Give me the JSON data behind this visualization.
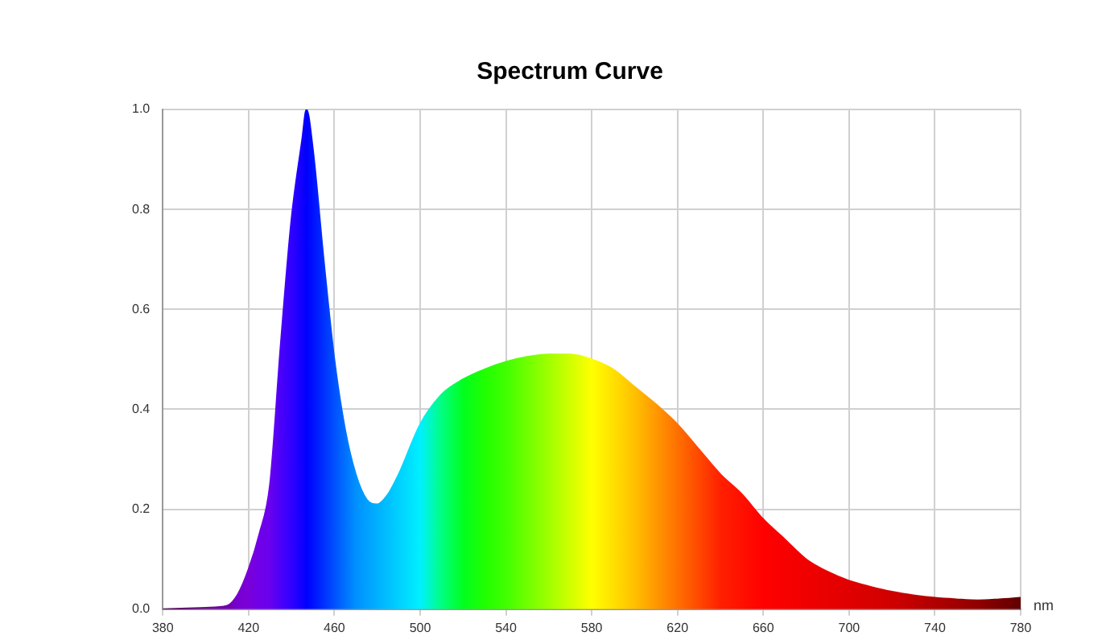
{
  "chart_data": {
    "type": "area",
    "title": "Spectrum Curve",
    "xlabel": "nm",
    "x": [
      380,
      400,
      410,
      415,
      420,
      425,
      430,
      435,
      440,
      445,
      447,
      450,
      455,
      460,
      465,
      470,
      475,
      480,
      485,
      490,
      500,
      510,
      520,
      530,
      540,
      550,
      560,
      570,
      580,
      590,
      600,
      610,
      620,
      630,
      640,
      650,
      660,
      670,
      680,
      690,
      700,
      710,
      720,
      730,
      740,
      750,
      760,
      770,
      780
    ],
    "series": [
      {
        "values": [
          0,
          0.003,
          0.007,
          0.03,
          0.08,
          0.15,
          0.25,
          0.53,
          0.78,
          0.94,
          1.0,
          0.92,
          0.7,
          0.5,
          0.36,
          0.27,
          0.22,
          0.21,
          0.23,
          0.27,
          0.37,
          0.43,
          0.46,
          0.48,
          0.495,
          0.505,
          0.51,
          0.51,
          0.5,
          0.48,
          0.445,
          0.41,
          0.37,
          0.32,
          0.27,
          0.23,
          0.18,
          0.14,
          0.1,
          0.075,
          0.057,
          0.045,
          0.035,
          0.028,
          0.023,
          0.02,
          0.018,
          0.02,
          0.023
        ],
        "colors": [
          "#4a0a4a",
          "#6a0a8a",
          "#7000b0",
          "#7800d0",
          "#7a00d8",
          "#7000e8",
          "#6a00ee",
          "#4a00f8",
          "#3000ff",
          "#1000ff",
          "#0000ff",
          "#0010ff",
          "#0030ff",
          "#0050ff",
          "#0070ff",
          "#0090ff",
          "#00a0ff",
          "#00b0ff",
          "#00c0ff",
          "#00d0ff",
          "#00f0ff",
          "#00ff80",
          "#00ff20",
          "#20ff00",
          "#40ff00",
          "#70ff00",
          "#a0ff00",
          "#d0ff00",
          "#ffff00",
          "#ffe000",
          "#ffc000",
          "#ff9800",
          "#ff7000",
          "#ff4800",
          "#ff2000",
          "#ff1000",
          "#ff0000",
          "#f80000",
          "#f00000",
          "#e80000",
          "#e00000",
          "#d80000",
          "#d00000",
          "#c00000",
          "#b00000",
          "#a00000",
          "#900000",
          "#780000",
          "#600000"
        ]
      }
    ],
    "xlim": [
      380,
      780
    ],
    "xticks": [
      380,
      420,
      460,
      500,
      540,
      580,
      620,
      660,
      700,
      740,
      780
    ],
    "ylim": [
      0,
      1
    ],
    "yticks": [
      {
        "value": 0,
        "label": "0.0"
      },
      0.2,
      0.4,
      0.6,
      0.8,
      {
        "value": 1,
        "label": "1.0"
      }
    ],
    "grid": true,
    "marker": "none"
  }
}
